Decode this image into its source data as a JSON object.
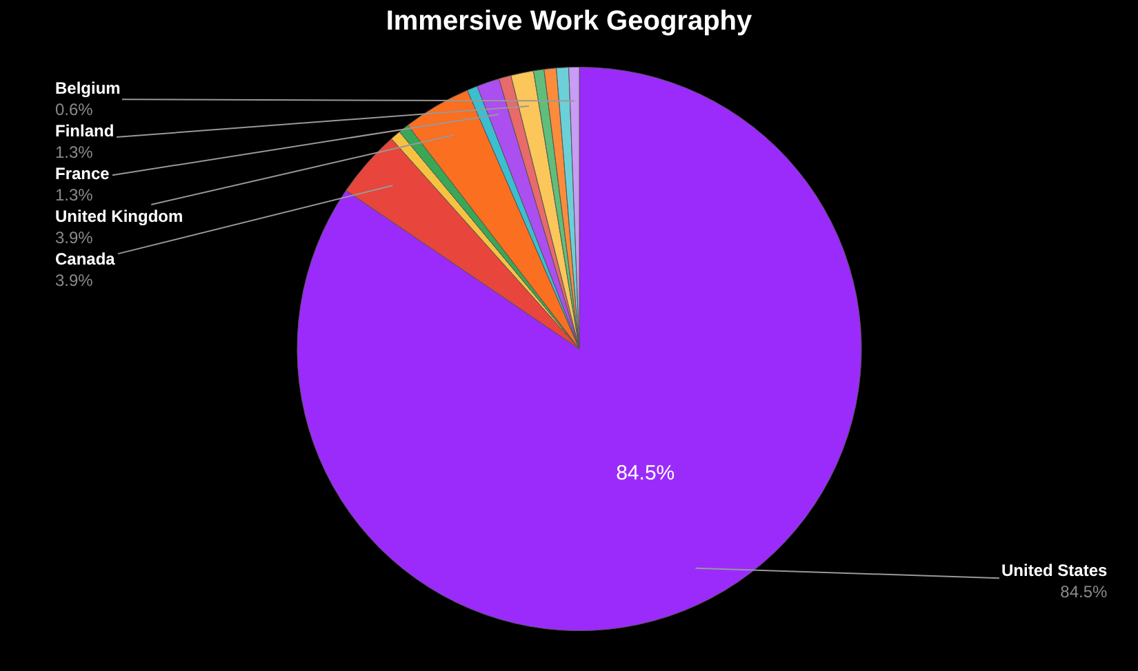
{
  "chart_data": {
    "type": "pie",
    "title": "Immersive Work Geography",
    "legend": false,
    "categories": [
      "United States",
      "Canada",
      null,
      null,
      "United Kingdom",
      null,
      "France",
      null,
      "Finland",
      null,
      null,
      null,
      "Belgium"
    ],
    "values": [
      84.5,
      3.9,
      0.6,
      0.6,
      3.9,
      0.6,
      1.3,
      0.7,
      1.3,
      0.6,
      0.7,
      0.7,
      0.6
    ],
    "value_labels": [
      "84.5%",
      "3.9%",
      null,
      null,
      "3.9%",
      null,
      "1.3%",
      null,
      "1.3%",
      null,
      null,
      null,
      "0.6%"
    ],
    "colors": [
      "#9b2bfa",
      "#e8453c",
      "#f5c242",
      "#3aa757",
      "#fa6f20",
      "#3bbfd0",
      "#ab4ff0",
      "#e86a6a",
      "#fbc65a",
      "#5fbf7a",
      "#fb8c3c",
      "#6cd0d8",
      "#c99cf7"
    ]
  }
}
